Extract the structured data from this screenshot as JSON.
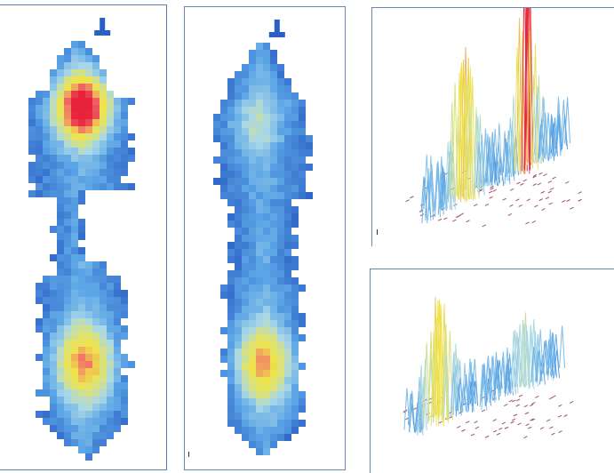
{
  "figure": {
    "panels": [
      {
        "id": "heatmap-left",
        "kind": "pressure-heatmap"
      },
      {
        "id": "heatmap-right",
        "kind": "pressure-heatmap"
      },
      {
        "id": "surface-top",
        "kind": "3d-pressure-surface"
      },
      {
        "id": "surface-bottom",
        "kind": "3d-pressure-surface"
      }
    ]
  },
  "colors": {
    "background": "#ffffff",
    "low": "#2a5fc4",
    "mid_low": "#5aa4e6",
    "mid": "#a9d8e8",
    "mid_high": "#d9e27a",
    "high": "#f0e34a",
    "peak": "#f06a6a",
    "max": "#e8223a",
    "base_hatch": "#a0506e"
  }
}
